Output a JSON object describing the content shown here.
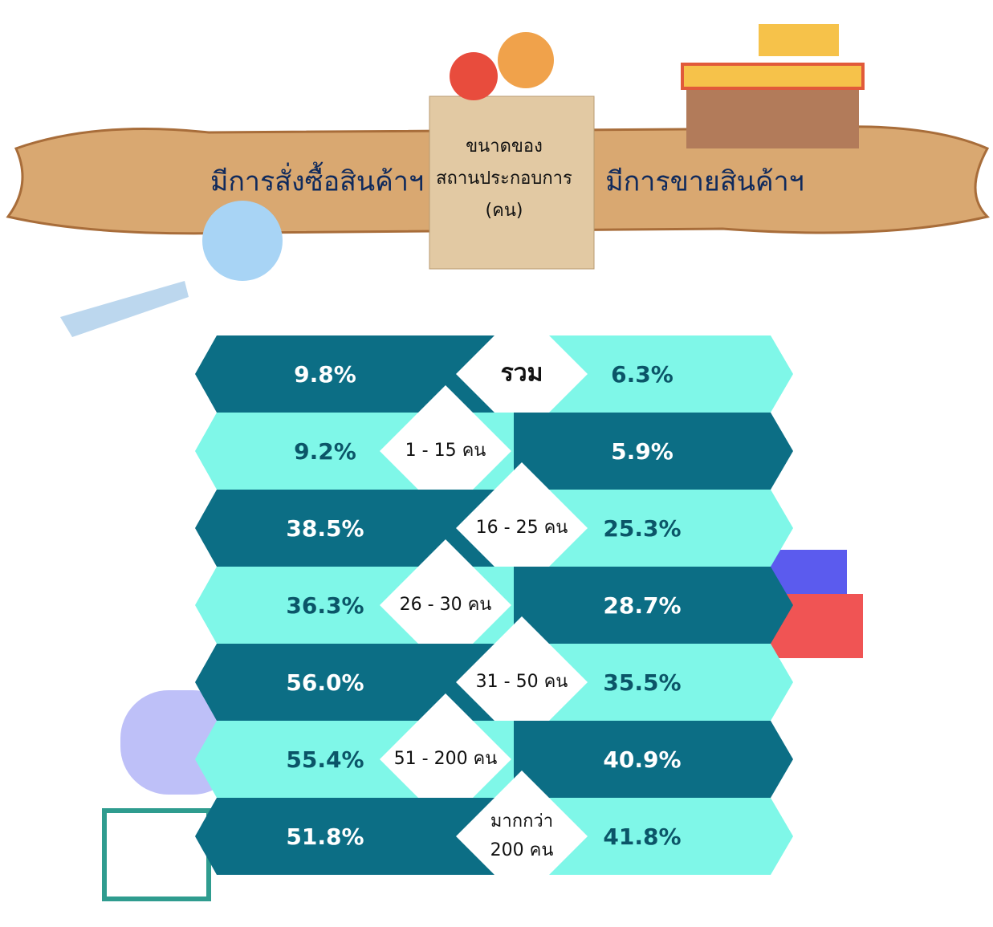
{
  "header": {
    "left": "มีการสั่งซื้อสินค้าฯ",
    "center": [
      "ขนาดของ",
      "สถานประกอบการ",
      "(คน)"
    ],
    "right": "มีการขายสินค้าฯ"
  },
  "rows": [
    {
      "label": [
        "รวม"
      ],
      "left": "9.8%",
      "right": "6.3%"
    },
    {
      "label": [
        "1 - 15 คน"
      ],
      "left": "9.2%",
      "right": "5.9%"
    },
    {
      "label": [
        "16 - 25 คน"
      ],
      "left": "38.5%",
      "right": "25.3%"
    },
    {
      "label": [
        "26 - 30 คน"
      ],
      "left": "36.3%",
      "right": "28.7%"
    },
    {
      "label": [
        "31 - 50 คน"
      ],
      "left": "56.0%",
      "right": "35.5%"
    },
    {
      "label": [
        "51 - 200 คน"
      ],
      "left": "55.4%",
      "right": "40.9%"
    },
    {
      "label": [
        "มากกว่า",
        "200 คน"
      ],
      "left": "51.8%",
      "right": "41.8%"
    }
  ]
}
